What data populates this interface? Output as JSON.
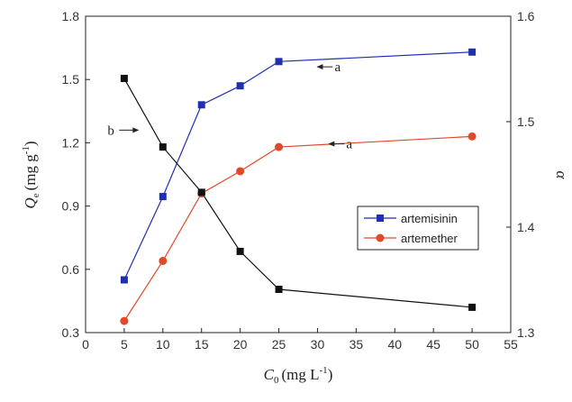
{
  "chart_data": {
    "type": "line",
    "x": [
      5,
      10,
      15,
      20,
      25,
      50
    ],
    "xlabel_var": "C",
    "xlabel_sub": "0",
    "xlabel_unit": "(mg L",
    "xlabel_sup": "-1",
    "xlabel_close": ")",
    "xlim": [
      0,
      55
    ],
    "xticks": [
      0,
      5,
      10,
      15,
      20,
      25,
      30,
      35,
      40,
      45,
      50,
      55
    ],
    "ylabel_var": "Q",
    "ylabel_sub": "e",
    "ylabel_unit": "(mg g",
    "ylabel_sup": "-1",
    "ylabel_close": ")",
    "ylim": [
      0.3,
      1.8
    ],
    "yticks": [
      "0.3",
      "0.6",
      "0.9",
      "1.2",
      "1.5",
      "1.8"
    ],
    "y2label": "α",
    "y2lim": [
      1.3,
      1.6
    ],
    "y2ticks": [
      "1.3",
      "1.4",
      "1.5",
      "1.6"
    ],
    "series": [
      {
        "name": "artemisinin",
        "axis": "left",
        "color": "#1f2fb0",
        "marker": "square",
        "values": [
          0.55,
          0.945,
          1.38,
          1.47,
          1.585,
          1.63
        ]
      },
      {
        "name": "artemether",
        "axis": "left",
        "color": "#e04a2a",
        "marker": "circle",
        "values": [
          0.355,
          0.64,
          0.96,
          1.065,
          1.18,
          1.23
        ]
      },
      {
        "name": "",
        "axis": "right",
        "color": "#111111",
        "marker": "square",
        "values": [
          1.541,
          1.476,
          1.433,
          1.377,
          1.341,
          1.324
        ]
      }
    ],
    "annotations": [
      {
        "text": "a",
        "arrow": "left",
        "x": 30,
        "y": 1.56
      },
      {
        "text": "a",
        "arrow": "left",
        "x": 31.5,
        "y": 1.195
      },
      {
        "text": "b",
        "arrow": "right",
        "x": 4,
        "y": 1.51
      }
    ],
    "legend_position": "center-right"
  }
}
